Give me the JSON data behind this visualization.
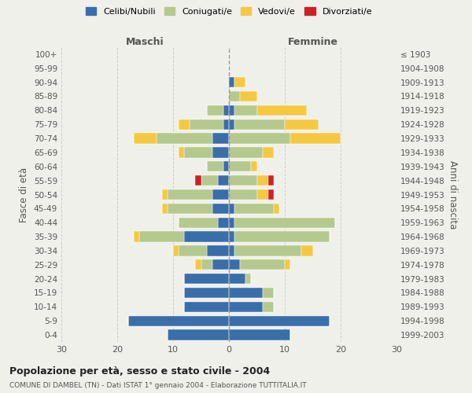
{
  "age_groups": [
    "100+",
    "95-99",
    "90-94",
    "85-89",
    "80-84",
    "75-79",
    "70-74",
    "65-69",
    "60-64",
    "55-59",
    "50-54",
    "45-49",
    "40-44",
    "35-39",
    "30-34",
    "25-29",
    "20-24",
    "15-19",
    "10-14",
    "5-9",
    "0-4"
  ],
  "birth_years": [
    "≤ 1903",
    "1904-1908",
    "1909-1913",
    "1914-1918",
    "1919-1923",
    "1924-1928",
    "1929-1933",
    "1934-1938",
    "1939-1943",
    "1944-1948",
    "1949-1953",
    "1954-1958",
    "1959-1963",
    "1964-1968",
    "1969-1973",
    "1974-1978",
    "1979-1983",
    "1984-1988",
    "1989-1993",
    "1994-1998",
    "1999-2003"
  ],
  "colors": {
    "celibi": "#3a6eaa",
    "coniugati": "#b5c98e",
    "vedovi": "#f5c842",
    "divorziati": "#cc2222"
  },
  "males": {
    "celibi": [
      0,
      0,
      0,
      0,
      1,
      1,
      3,
      3,
      1,
      2,
      3,
      3,
      2,
      8,
      4,
      3,
      8,
      8,
      8,
      18,
      11
    ],
    "coniugati": [
      0,
      0,
      0,
      0,
      3,
      6,
      10,
      5,
      3,
      3,
      8,
      8,
      7,
      8,
      5,
      2,
      0,
      0,
      0,
      0,
      0
    ],
    "vedovi": [
      0,
      0,
      0,
      0,
      0,
      2,
      4,
      1,
      0,
      0,
      1,
      1,
      0,
      1,
      1,
      1,
      0,
      0,
      0,
      0,
      0
    ],
    "divorziati": [
      0,
      0,
      0,
      0,
      0,
      0,
      0,
      0,
      0,
      1,
      0,
      0,
      0,
      0,
      0,
      0,
      0,
      0,
      0,
      0,
      0
    ]
  },
  "females": {
    "celibi": [
      0,
      0,
      1,
      0,
      1,
      1,
      0,
      0,
      0,
      0,
      0,
      1,
      1,
      1,
      1,
      2,
      3,
      6,
      6,
      18,
      11
    ],
    "coniugati": [
      0,
      0,
      0,
      2,
      4,
      9,
      11,
      6,
      4,
      5,
      5,
      7,
      18,
      17,
      12,
      8,
      1,
      2,
      2,
      0,
      0
    ],
    "vedovi": [
      0,
      0,
      2,
      3,
      9,
      6,
      9,
      2,
      1,
      2,
      2,
      1,
      0,
      0,
      2,
      1,
      0,
      0,
      0,
      0,
      0
    ],
    "divorziati": [
      0,
      0,
      0,
      0,
      0,
      0,
      0,
      0,
      0,
      1,
      1,
      0,
      0,
      0,
      0,
      0,
      0,
      0,
      0,
      0,
      0
    ]
  },
  "xlim": 30,
  "title": "Popolazione per età, sesso e stato civile - 2004",
  "subtitle": "COMUNE DI DAMBEL (TN) - Dati ISTAT 1° gennaio 2004 - Elaborazione TUTTITALIA.IT",
  "ylabel_left": "Fasce di età",
  "ylabel_right": "Anni di nascita",
  "xlabel_left": "Maschi",
  "xlabel_right": "Femmine",
  "legend_labels": [
    "Celibi/Nubili",
    "Coniugati/e",
    "Vedovi/e",
    "Divorziati/e"
  ],
  "background_color": "#f0f0eb"
}
